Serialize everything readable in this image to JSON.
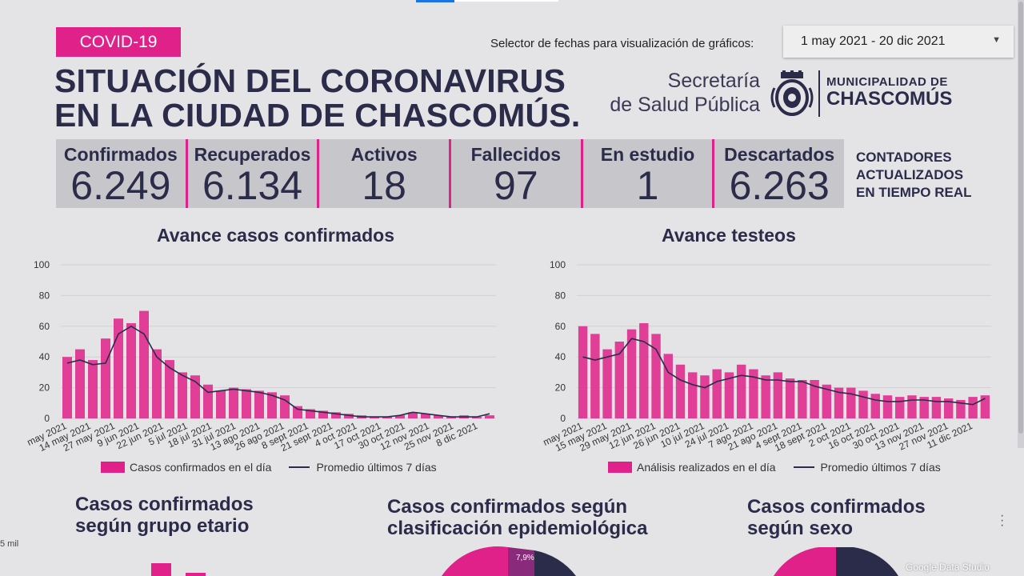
{
  "header": {
    "badge": "COVID-19",
    "title_line1": "SITUACIÓN DEL CORONAVIRUS",
    "title_line2": "EN LA CIUDAD DE CHASCOMÚS.",
    "date_selector_label": "Selector de fechas para visualización de gráficos:",
    "date_range": "1 may 2021 - 20 dic 2021",
    "secretaria_line1": "Secretaría",
    "secretaria_line2": "de Salud Pública",
    "muni_line1": "MUNICIPALIDAD DE",
    "muni_line2": "CHASCOMÚS"
  },
  "counters": [
    {
      "label": "Confirmados",
      "value": "6.249"
    },
    {
      "label": "Recuperados",
      "value": "6.134"
    },
    {
      "label": "Activos",
      "value": "18"
    },
    {
      "label": "Fallecidos",
      "value": "97"
    },
    {
      "label": "En estudio",
      "value": "1"
    },
    {
      "label": "Descartados",
      "value": "6.263"
    }
  ],
  "realtime": {
    "line1": "CONTADORES",
    "line2": "ACTUALIZADOS",
    "line3": "EN TIEMPO REAL"
  },
  "colors": {
    "accent": "#e0218a",
    "navy": "#2b2c4a",
    "background": "#e4e4e7"
  },
  "charts": {
    "cases_title": "Avance casos confirmados",
    "tests_title": "Avance testeos",
    "cases_legend_bar": "Casos confirmados en el día",
    "tests_legend_bar": "Análisis realizados en el día",
    "legend_line": "Promedio últimos 7 días"
  },
  "chart_data": [
    {
      "type": "bar",
      "title": "Avance casos confirmados",
      "ylim": [
        0,
        100
      ],
      "yticks": [
        0,
        20,
        40,
        60,
        80,
        100
      ],
      "xticks": [
        "may 2021",
        "14 may 2021",
        "27 may 2021",
        "9 jun 2021",
        "22 jun 2021",
        "5 jul 2021",
        "18 jul 2021",
        "31 jul 2021",
        "13 ago 2021",
        "26 ago 2021",
        "8 sept 2021",
        "21 sept 2021",
        "4 oct 2021",
        "17 oct 2021",
        "30 oct 2021",
        "12 nov 2021",
        "25 nov 2021",
        "8 dic 2021"
      ],
      "series": [
        {
          "name": "Casos confirmados en el día",
          "kind": "bar",
          "values_by_week": [
            40,
            45,
            38,
            52,
            65,
            62,
            70,
            45,
            38,
            30,
            28,
            22,
            18,
            20,
            19,
            18,
            17,
            15,
            8,
            6,
            5,
            4,
            3,
            2,
            1,
            1,
            2,
            4,
            3,
            2,
            1,
            2,
            1,
            2
          ]
        },
        {
          "name": "Promedio últimos 7 días",
          "kind": "line",
          "values_by_week": [
            36,
            38,
            35,
            36,
            55,
            60,
            55,
            40,
            33,
            28,
            24,
            17,
            18,
            19,
            18,
            17,
            15,
            12,
            6,
            5,
            4,
            3,
            2,
            1,
            1,
            1,
            2,
            4,
            3,
            2,
            1,
            1,
            1,
            3
          ]
        }
      ],
      "legend": "bottom"
    },
    {
      "type": "bar",
      "title": "Avance testeos",
      "ylim": [
        0,
        100
      ],
      "yticks": [
        0,
        20,
        40,
        60,
        80,
        100
      ],
      "xticks": [
        "may 2021",
        "15 may 2021",
        "29 may 2021",
        "12 jun 2021",
        "26 jun 2021",
        "10 jul 2021",
        "24 jul 2021",
        "7 ago 2021",
        "21 ago 2021",
        "4 sept 2021",
        "18 sept 2021",
        "2 oct 2021",
        "16 oct 2021",
        "30 oct 2021",
        "13 nov 2021",
        "27 nov 2021",
        "11 dic 2021"
      ],
      "series": [
        {
          "name": "Análisis realizados en el día",
          "kind": "bar",
          "values_by_week": [
            60,
            55,
            45,
            50,
            58,
            62,
            55,
            42,
            35,
            30,
            28,
            32,
            30,
            35,
            32,
            28,
            30,
            26,
            25,
            25,
            22,
            20,
            20,
            18,
            16,
            15,
            14,
            15,
            14,
            14,
            13,
            12,
            14,
            15
          ]
        },
        {
          "name": "Promedio últimos 7 días",
          "kind": "line",
          "values_by_week": [
            40,
            38,
            40,
            42,
            52,
            50,
            45,
            30,
            25,
            22,
            20,
            24,
            26,
            28,
            27,
            25,
            25,
            24,
            24,
            21,
            19,
            17,
            16,
            14,
            12,
            11,
            11,
            12,
            12,
            11,
            11,
            10,
            9,
            13
          ]
        }
      ],
      "legend": "bottom"
    }
  ],
  "sections": {
    "age_line1": "Casos confirmados",
    "age_line2": "según grupo etario",
    "epi_line1": "Casos confirmados según",
    "epi_line2": "clasificación epidemiológica",
    "sex_line1": "Casos confirmados",
    "sex_line2": "según sexo",
    "age_axis_label": "5 mil",
    "epi_slice_label": "7,9%"
  },
  "footer": {
    "brand": "Google Data Studio"
  }
}
